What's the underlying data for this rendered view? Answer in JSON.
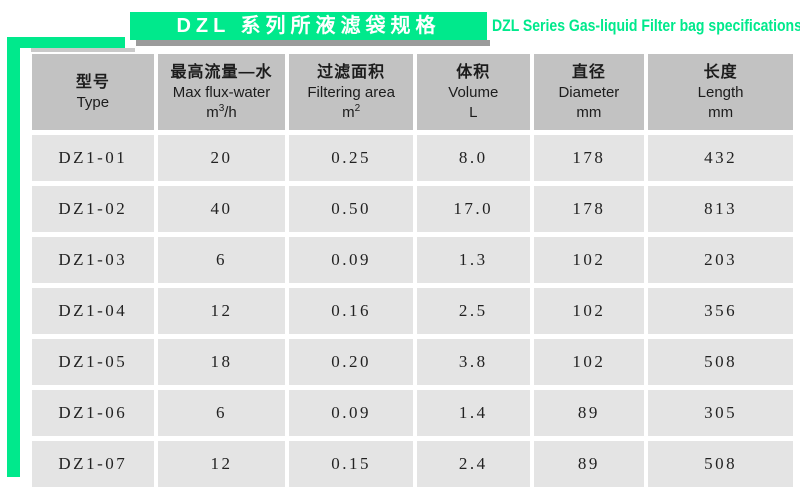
{
  "title": {
    "zh": "DZL 系列所液滤袋规格",
    "en": "DZL Series Gas-liquid Filter bag specifications",
    "accent_green": "#00E98C",
    "shadow_gray": "#9B9B9B"
  },
  "table": {
    "header_bg": "#C2C2C2",
    "row_bg": "#E4E4E4",
    "columns": [
      {
        "zh": "型号",
        "en": "Type",
        "unit_base": "",
        "unit_sup": "",
        "unit_rest": ""
      },
      {
        "zh": "最高流量—水",
        "en": "Max flux-water",
        "unit_base": "m",
        "unit_sup": "3",
        "unit_rest": "/h"
      },
      {
        "zh": "过滤面积",
        "en": "Filtering area",
        "unit_base": "m",
        "unit_sup": "2",
        "unit_rest": ""
      },
      {
        "zh": "体积",
        "en": "Volume",
        "unit_base": "L",
        "unit_sup": "",
        "unit_rest": ""
      },
      {
        "zh": "直径",
        "en": "Diameter",
        "unit_base": "mm",
        "unit_sup": "",
        "unit_rest": ""
      },
      {
        "zh": "长度",
        "en": "Length",
        "unit_base": "mm",
        "unit_sup": "",
        "unit_rest": ""
      }
    ],
    "rows": [
      [
        "DZ1-01",
        "20",
        "0.25",
        "8.0",
        "178",
        "432"
      ],
      [
        "DZ1-02",
        "40",
        "0.50",
        "17.0",
        "178",
        "813"
      ],
      [
        "DZ1-03",
        "6",
        "0.09",
        "1.3",
        "102",
        "203"
      ],
      [
        "DZ1-04",
        "12",
        "0.16",
        "2.5",
        "102",
        "356"
      ],
      [
        "DZ1-05",
        "18",
        "0.20",
        "3.8",
        "102",
        "508"
      ],
      [
        "DZ1-06",
        "6",
        "0.09",
        "1.4",
        "89",
        "305"
      ],
      [
        "DZ1-07",
        "12",
        "0.15",
        "2.4",
        "89",
        "508"
      ]
    ]
  }
}
